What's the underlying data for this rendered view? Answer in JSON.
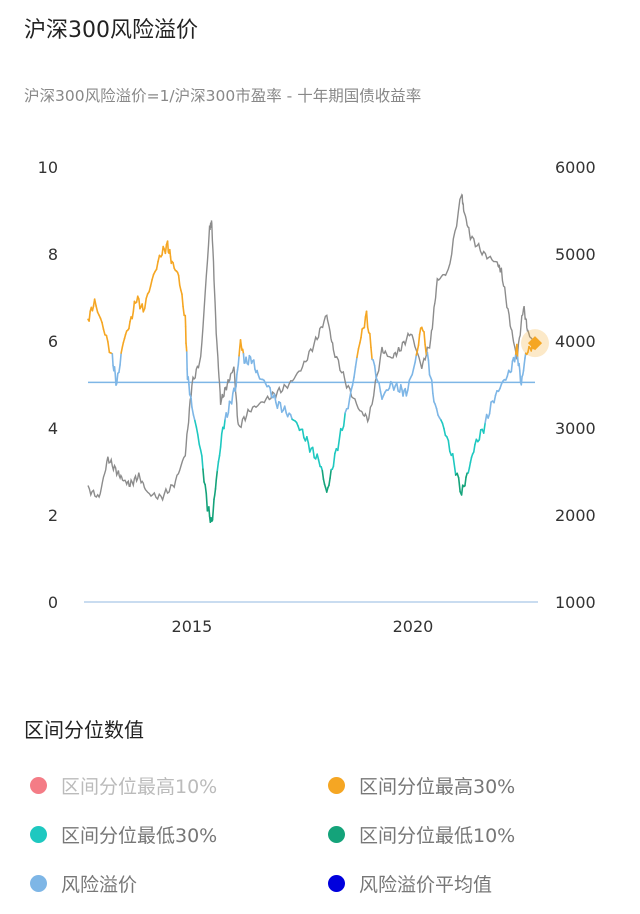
{
  "title": "沪深300风险溢价",
  "subtitle": "沪深300风险溢价=1/沪深300市盈率 - 十年期国债收益率",
  "legend_title": "区间分位数值",
  "legend": [
    {
      "label": "区间分位最高10%",
      "color": "#f47c86",
      "active": false
    },
    {
      "label": "区间分位最高30%",
      "color": "#f5a623",
      "active": true
    },
    {
      "label": "区间分位最低30%",
      "color": "#1ec8c0",
      "active": true
    },
    {
      "label": "区间分位最低10%",
      "color": "#14a37a",
      "active": true
    },
    {
      "label": "风险溢价",
      "color": "#7eb6e6",
      "active": true
    },
    {
      "label": "风险溢价平均值",
      "color": "#0000dd",
      "active": true
    }
  ],
  "chart_data": {
    "type": "line",
    "title": "沪深300风险溢价",
    "left_axis": {
      "range": [
        0,
        10
      ],
      "ticks": [
        "0",
        "2",
        "4",
        "6",
        "8",
        "10"
      ]
    },
    "right_axis": {
      "range": [
        1000,
        6000
      ],
      "ticks": [
        "1000",
        "2000",
        "3000",
        "4000",
        "5000",
        "6000"
      ]
    },
    "x_range": [
      2012.65,
      2022.76
    ],
    "x_ticks": [
      {
        "value": 2015,
        "label": "2015"
      },
      {
        "value": 2020,
        "label": "2020"
      }
    ],
    "thresholds": {
      "high30": 5.7,
      "low30": 4.2,
      "low10": 3.0
    },
    "mean": 5.05,
    "risk_premium": {
      "x": [
        2012.65,
        2012.8,
        2013.0,
        2013.2,
        2013.3,
        2013.45,
        2013.6,
        2013.75,
        2013.9,
        2014.1,
        2014.3,
        2014.45,
        2014.55,
        2014.7,
        2014.85,
        2014.9,
        2015.0,
        2015.2,
        2015.35,
        2015.45,
        2015.55,
        2015.7,
        2015.85,
        2016.0,
        2016.1,
        2016.2,
        2016.35,
        2016.5,
        2016.7,
        2016.9,
        2017.1,
        2017.3,
        2017.5,
        2017.7,
        2017.9,
        2018.05,
        2018.2,
        2018.4,
        2018.6,
        2018.8,
        2018.95,
        2019.1,
        2019.3,
        2019.5,
        2019.7,
        2019.85,
        2020.05,
        2020.2,
        2020.35,
        2020.5,
        2020.7,
        2020.9,
        2021.1,
        2021.25,
        2021.4,
        2021.6,
        2021.8,
        2022.0,
        2022.2,
        2022.35,
        2022.45,
        2022.55,
        2022.7,
        2022.76
      ],
      "y": [
        6.5,
        6.9,
        6.3,
        5.6,
        5.0,
        6.0,
        6.4,
        7.0,
        6.7,
        7.4,
        8.0,
        8.2,
        7.8,
        7.5,
        6.5,
        5.2,
        4.5,
        3.5,
        2.2,
        1.8,
        2.8,
        4.0,
        4.5,
        5.0,
        6.0,
        5.5,
        5.6,
        5.2,
        5.0,
        4.6,
        4.4,
        4.2,
        3.9,
        3.5,
        3.2,
        2.5,
        3.2,
        4.0,
        4.8,
        6.0,
        6.6,
        5.5,
        4.7,
        5.0,
        4.9,
        4.8,
        5.5,
        6.4,
        5.5,
        4.5,
        4.0,
        3.3,
        2.5,
        3.0,
        3.6,
        4.0,
        4.6,
        5.0,
        5.3,
        5.8,
        5.0,
        5.7,
        5.9,
        5.95
      ]
    },
    "csi300": {
      "x": [
        2012.65,
        2012.9,
        2013.1,
        2013.3,
        2013.45,
        2013.6,
        2013.8,
        2014.0,
        2014.3,
        2014.6,
        2014.85,
        2015.0,
        2015.2,
        2015.4,
        2015.45,
        2015.55,
        2015.65,
        2015.8,
        2015.95,
        2016.05,
        2016.3,
        2016.6,
        2016.9,
        2017.2,
        2017.5,
        2017.8,
        2018.05,
        2018.2,
        2018.5,
        2018.8,
        2019.0,
        2019.3,
        2019.5,
        2019.7,
        2019.95,
        2020.2,
        2020.4,
        2020.55,
        2020.8,
        2021.1,
        2021.15,
        2021.3,
        2021.6,
        2021.9,
        2022.0,
        2022.2,
        2022.35,
        2022.5,
        2022.6,
        2022.76
      ],
      "y": [
        2300,
        2200,
        2650,
        2500,
        2400,
        2350,
        2450,
        2250,
        2200,
        2350,
        2700,
        3500,
        3800,
        5300,
        5350,
        4100,
        3300,
        3500,
        3700,
        3000,
        3200,
        3300,
        3400,
        3500,
        3700,
        4000,
        4300,
        3900,
        3500,
        3200,
        3100,
        3900,
        3800,
        3900,
        4100,
        3700,
        4000,
        4700,
        4800,
        5700,
        5500,
        5200,
        5000,
        4900,
        4800,
        4200,
        3800,
        4400,
        4100,
        3950
      ]
    }
  }
}
